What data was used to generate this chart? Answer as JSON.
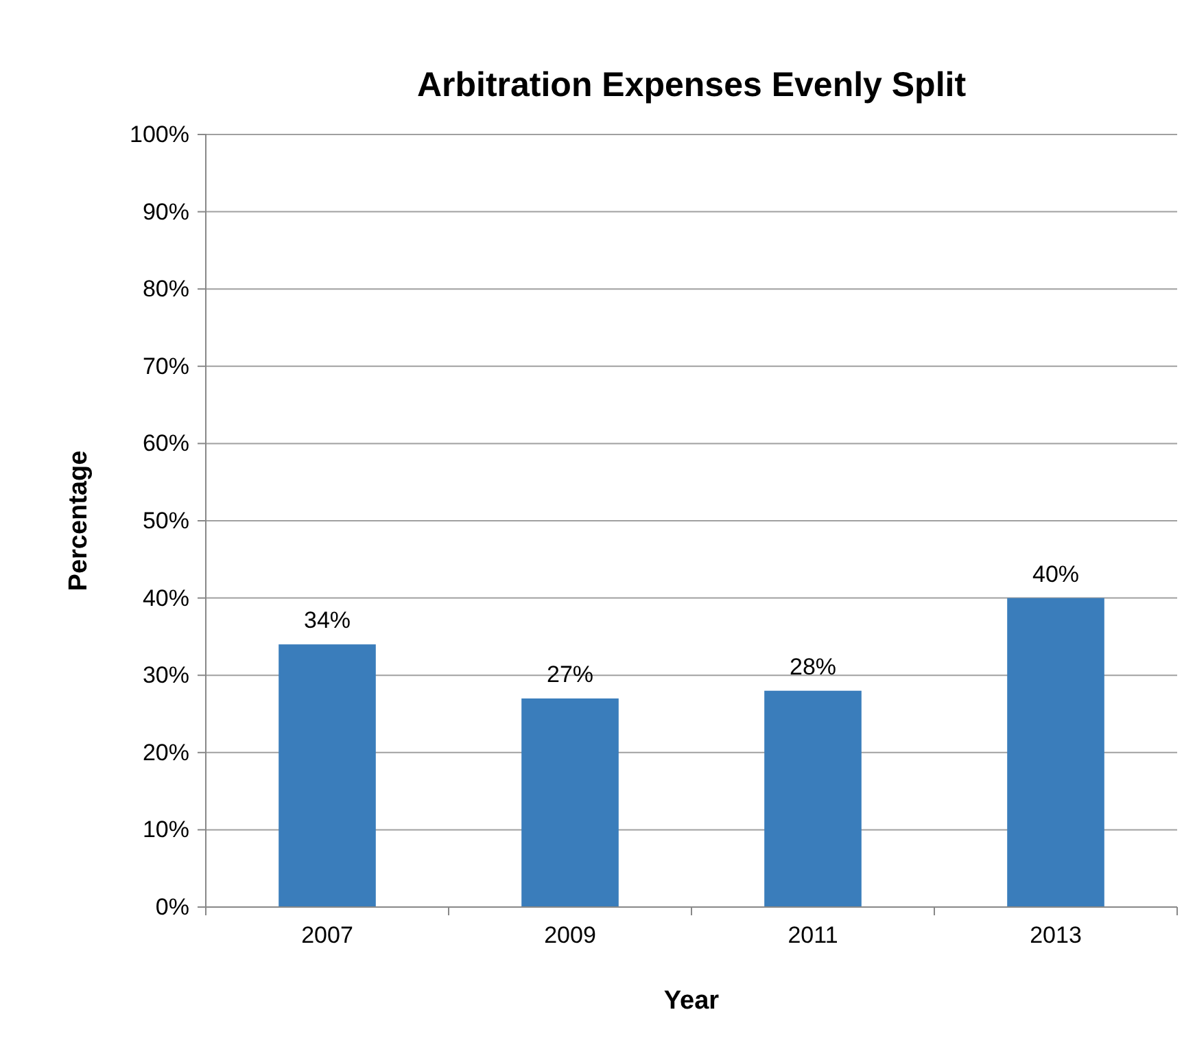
{
  "chart_data": {
    "type": "bar",
    "title": "Arbitration Expenses Evenly Split",
    "xlabel": "Year",
    "ylabel": "Percentage",
    "categories": [
      "2007",
      "2009",
      "2011",
      "2013"
    ],
    "values": [
      34,
      27,
      28,
      40
    ],
    "value_labels": [
      "34%",
      "27%",
      "28%",
      "40%"
    ],
    "color": "#3a7dbb",
    "ylim": [
      0,
      100
    ],
    "yticks": [
      {
        "value": 0,
        "label": "0%"
      },
      {
        "value": 10,
        "label": "10%"
      },
      {
        "value": 20,
        "label": "20%"
      },
      {
        "value": 30,
        "label": "30%"
      },
      {
        "value": 40,
        "label": "40%"
      },
      {
        "value": 50,
        "label": "50%"
      },
      {
        "value": 60,
        "label": "60%"
      },
      {
        "value": 70,
        "label": "70%"
      },
      {
        "value": 80,
        "label": "80%"
      },
      {
        "value": 90,
        "label": "90%"
      },
      {
        "value": 100,
        "label": "100%"
      }
    ],
    "grid": "y"
  }
}
